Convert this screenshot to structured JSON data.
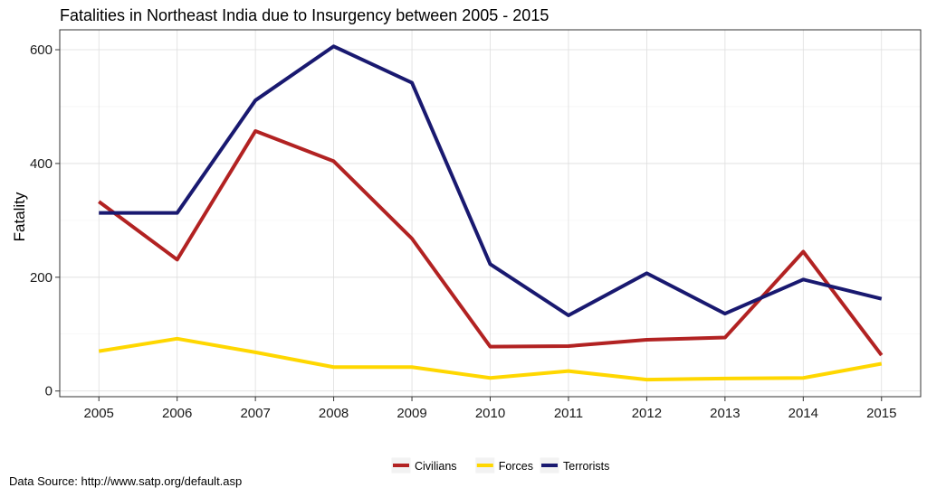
{
  "chart_data": {
    "type": "line",
    "title": "Fatalities in Northeast India due to Insurgency between 2005 - 2015",
    "xlabel": "",
    "ylabel": "Fatality",
    "x": [
      2005,
      2006,
      2007,
      2008,
      2009,
      2010,
      2011,
      2012,
      2013,
      2014,
      2015
    ],
    "xlim": [
      2004.5,
      2015.5
    ],
    "ylim": [
      -10,
      635
    ],
    "y_ticks": [
      0,
      200,
      400,
      600
    ],
    "grid": true,
    "legend_position": "bottom",
    "series": [
      {
        "name": "Civilians",
        "color": "#b22222",
        "values": [
          333,
          231,
          457,
          404,
          268,
          78,
          79,
          90,
          94,
          245,
          63
        ]
      },
      {
        "name": "Forces",
        "color": "#ffd700",
        "values": [
          70,
          92,
          68,
          42,
          42,
          23,
          35,
          20,
          22,
          23,
          48
        ]
      },
      {
        "name": "Terrorists",
        "color": "#191970",
        "values": [
          313,
          313,
          511,
          606,
          542,
          223,
          133,
          207,
          136,
          196,
          162
        ]
      }
    ]
  },
  "footer": {
    "source_text": "Data Source: http://www.satp.org/default.asp"
  }
}
